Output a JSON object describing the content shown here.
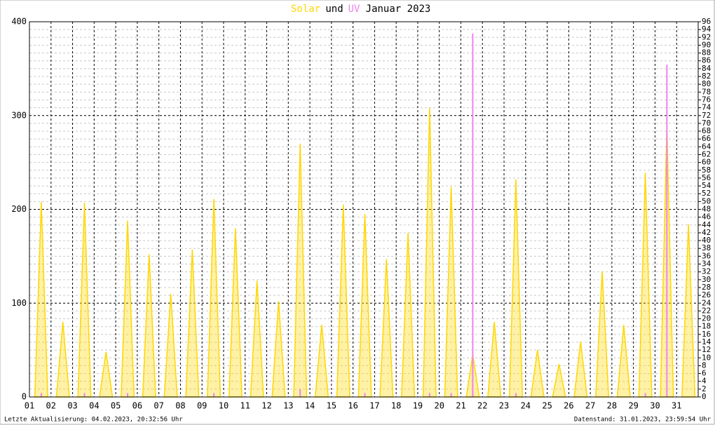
{
  "chart_data": {
    "type": "spike",
    "title": {
      "connector": "und",
      "suffix": "Januar 2023"
    },
    "categories": [
      "01",
      "02",
      "03",
      "04",
      "05",
      "06",
      "07",
      "08",
      "09",
      "10",
      "11",
      "12",
      "13",
      "14",
      "15",
      "16",
      "17",
      "18",
      "19",
      "20",
      "21",
      "22",
      "23",
      "24",
      "25",
      "26",
      "27",
      "28",
      "29",
      "30",
      "31"
    ],
    "series": [
      {
        "name": "Solar",
        "color": "#ffd700",
        "values": [
          208,
          80,
          207,
          48,
          188,
          152,
          110,
          157,
          211,
          180,
          124,
          102,
          270,
          77,
          205,
          195,
          147,
          175,
          308,
          224,
          45,
          80,
          232,
          50,
          35,
          59,
          134,
          77,
          239,
          290,
          184
        ]
      },
      {
        "name": "UV",
        "color": "#ee82ee",
        "axis": "y2",
        "values": [
          1,
          0,
          1,
          0,
          1,
          0,
          0,
          0,
          1,
          0,
          0,
          0,
          2,
          0,
          0,
          1,
          0,
          0,
          1,
          1,
          93,
          0,
          1,
          0,
          0,
          0,
          0,
          0,
          1,
          85,
          0
        ]
      }
    ],
    "ylim": [
      0,
      400
    ],
    "yticks": [
      0,
      100,
      200,
      300,
      400
    ],
    "y2lim": [
      0,
      96
    ],
    "y2ticks": [
      0,
      2,
      4,
      6,
      8,
      10,
      12,
      14,
      16,
      18,
      20,
      22,
      24,
      26,
      28,
      30,
      32,
      34,
      36,
      38,
      40,
      42,
      44,
      46,
      48,
      50,
      52,
      54,
      56,
      58,
      60,
      62,
      64,
      66,
      68,
      70,
      72,
      74,
      76,
      78,
      80,
      82,
      84,
      86,
      88,
      90,
      92,
      94,
      96
    ],
    "grid": true,
    "footer_left": "Letzte Aktualisierung: 04.02.2023, 20:32:56 Uhr",
    "footer_right": "Datenstand: 31.01.2023, 23:59:54 Uhr"
  }
}
